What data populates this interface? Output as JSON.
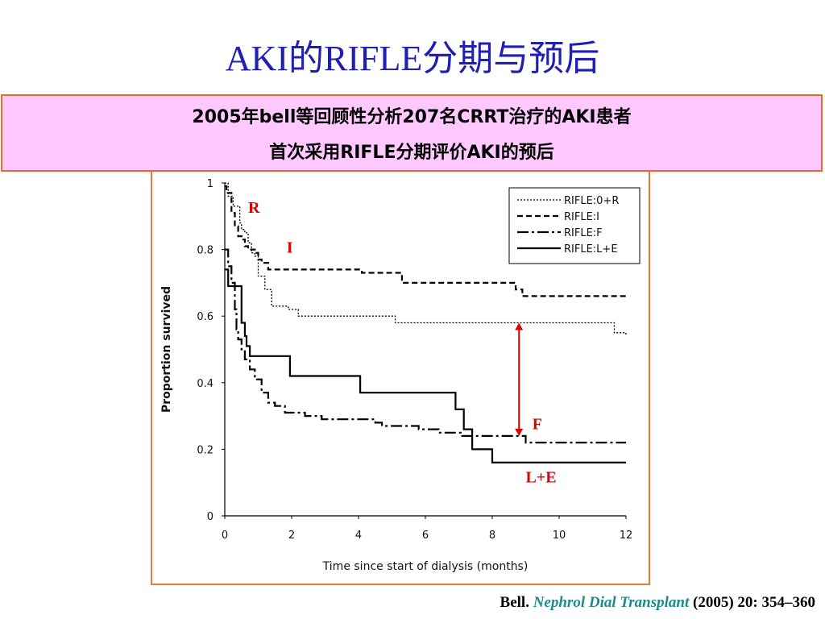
{
  "slide": {
    "title": "AKI的RIFLE分期与预后",
    "banner_line1": "2005年bell等回顾性分析207名CRRT治疗的AKI患者",
    "banner_line2": "首次采用RIFLE分期评价AKI的预后",
    "citation_author": "Bell.",
    "citation_journal": "Nephrol Dial Transplant",
    "citation_rest": "(2005) 20: 354–360"
  },
  "colors": {
    "title": "#1f1fb4",
    "banner_bg": "#ffc8ff",
    "banner_border": "#e86a2a",
    "annotation": "#e00000",
    "journal": "#1a8a8a"
  },
  "chart_data": {
    "type": "line",
    "subtype": "kaplan-meier step",
    "xlabel": "Time since start of dialysis (months)",
    "ylabel": "Proportion survived",
    "xlim": [
      0,
      12
    ],
    "ylim": [
      0,
      1
    ],
    "xticks": [
      "0",
      "2",
      "4",
      "6",
      "8",
      "10",
      "12"
    ],
    "yticks": [
      "0",
      "0.2",
      "0.4",
      "0.6",
      "0.8",
      "1"
    ],
    "xtick_values": [
      0,
      2,
      4,
      6,
      8,
      10,
      12
    ],
    "ytick_values": [
      0,
      0.2,
      0.4,
      0.6,
      0.8,
      1
    ],
    "grid": false,
    "legend_position": "top-right",
    "series": [
      {
        "name": "RIFLE:0+R",
        "dash": "2,2",
        "width": 1.3,
        "points": [
          [
            0,
            1
          ],
          [
            0.1,
            0.96
          ],
          [
            0.25,
            0.93
          ],
          [
            0.4,
            0.93
          ],
          [
            0.45,
            0.88
          ],
          [
            0.5,
            0.86
          ],
          [
            0.6,
            0.85
          ],
          [
            0.7,
            0.82
          ],
          [
            0.8,
            0.79
          ],
          [
            0.9,
            0.78
          ],
          [
            1.0,
            0.72
          ],
          [
            1.2,
            0.68
          ],
          [
            1.4,
            0.63
          ],
          [
            1.8,
            0.63
          ],
          [
            1.9,
            0.62
          ],
          [
            2.2,
            0.6
          ],
          [
            5.0,
            0.6
          ],
          [
            5.1,
            0.58
          ],
          [
            8.6,
            0.58
          ],
          [
            11.6,
            0.58
          ],
          [
            11.65,
            0.55
          ],
          [
            12,
            0.54
          ]
        ]
      },
      {
        "name": "RIFLE:I",
        "dash": "7,4",
        "width": 2.2,
        "points": [
          [
            0,
            0.99
          ],
          [
            0.05,
            0.97
          ],
          [
            0.2,
            0.91
          ],
          [
            0.3,
            0.87
          ],
          [
            0.4,
            0.84
          ],
          [
            0.5,
            0.83
          ],
          [
            0.6,
            0.81
          ],
          [
            0.7,
            0.8
          ],
          [
            0.9,
            0.79
          ],
          [
            1.0,
            0.77
          ],
          [
            1.1,
            0.76
          ],
          [
            1.3,
            0.74
          ],
          [
            4.0,
            0.74
          ],
          [
            4.1,
            0.73
          ],
          [
            5.2,
            0.73
          ],
          [
            5.3,
            0.7
          ],
          [
            8.5,
            0.7
          ],
          [
            8.7,
            0.68
          ],
          [
            8.9,
            0.66
          ],
          [
            12,
            0.66
          ]
        ]
      },
      {
        "name": "RIFLE:F",
        "dash": "14,4,3,4",
        "width": 2.2,
        "points": [
          [
            0,
            0.8
          ],
          [
            0.1,
            0.75
          ],
          [
            0.2,
            0.7
          ],
          [
            0.3,
            0.62
          ],
          [
            0.35,
            0.56
          ],
          [
            0.4,
            0.53
          ],
          [
            0.5,
            0.5
          ],
          [
            0.6,
            0.47
          ],
          [
            0.75,
            0.44
          ],
          [
            0.9,
            0.41
          ],
          [
            1.1,
            0.37
          ],
          [
            1.3,
            0.34
          ],
          [
            1.5,
            0.33
          ],
          [
            1.8,
            0.31
          ],
          [
            2.4,
            0.3
          ],
          [
            2.9,
            0.29
          ],
          [
            4.5,
            0.28
          ],
          [
            4.7,
            0.27
          ],
          [
            5.8,
            0.26
          ],
          [
            6.4,
            0.25
          ],
          [
            7.0,
            0.25
          ],
          [
            7.1,
            0.24
          ],
          [
            8.9,
            0.24
          ],
          [
            9.0,
            0.22
          ],
          [
            12,
            0.22
          ]
        ]
      },
      {
        "name": "RIFLE:L+E",
        "dash": "",
        "width": 2.2,
        "points": [
          [
            0,
            0.74
          ],
          [
            0.1,
            0.69
          ],
          [
            0.25,
            0.69
          ],
          [
            0.45,
            0.69
          ],
          [
            0.5,
            0.58
          ],
          [
            0.6,
            0.54
          ],
          [
            0.65,
            0.51
          ],
          [
            0.75,
            0.48
          ],
          [
            1.9,
            0.48
          ],
          [
            1.95,
            0.42
          ],
          [
            4.0,
            0.42
          ],
          [
            4.05,
            0.37
          ],
          [
            6.8,
            0.37
          ],
          [
            6.9,
            0.32
          ],
          [
            7.1,
            0.32
          ],
          [
            7.15,
            0.26
          ],
          [
            7.35,
            0.26
          ],
          [
            7.4,
            0.2
          ],
          [
            7.9,
            0.2
          ],
          [
            8.0,
            0.16
          ],
          [
            12,
            0.16
          ]
        ]
      }
    ],
    "annotations": [
      {
        "text": "R",
        "x": 0.7,
        "y": 0.91
      },
      {
        "text": "I",
        "x": 1.85,
        "y": 0.79
      },
      {
        "text": "F",
        "x": 9.2,
        "y": 0.26
      },
      {
        "text": "L+E",
        "x": 9.0,
        "y": 0.1
      }
    ],
    "arrow": {
      "x": 8.8,
      "y_from": 0.58,
      "y_to": 0.24,
      "color": "#e00000"
    }
  }
}
